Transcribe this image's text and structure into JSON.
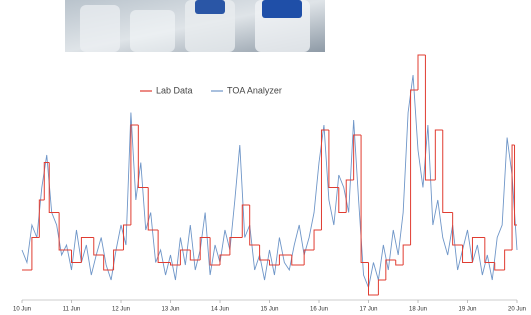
{
  "chart_data": {
    "type": "line",
    "xlim": [
      10,
      20
    ],
    "ylim": [
      0,
      100
    ],
    "xticks": [
      {
        "value": 10,
        "label": "10 Jun"
      },
      {
        "value": 11,
        "label": "11 Jun"
      },
      {
        "value": 12,
        "label": "12 Jun"
      },
      {
        "value": 13,
        "label": "13 Jun"
      },
      {
        "value": 14,
        "label": "14 Jun"
      },
      {
        "value": 15,
        "label": "15 Jun"
      },
      {
        "value": 16,
        "label": "16 Jun"
      },
      {
        "value": 17,
        "label": "17 Jun"
      },
      {
        "value": 18,
        "label": "18 Jun"
      },
      {
        "value": 19,
        "label": "19 Jun"
      },
      {
        "value": 20,
        "label": "20 Jun"
      }
    ],
    "series": [
      {
        "name": "Lab Data",
        "color": "#e03c31",
        "step": true,
        "x": [
          10.0,
          10.2,
          10.35,
          10.45,
          10.55,
          10.75,
          11.0,
          11.2,
          11.45,
          11.65,
          11.85,
          12.05,
          12.2,
          12.35,
          12.55,
          12.75,
          13.0,
          13.2,
          13.4,
          13.6,
          13.8,
          14.0,
          14.2,
          14.45,
          14.6,
          14.8,
          15.0,
          15.2,
          15.45,
          15.7,
          15.9,
          16.05,
          16.2,
          16.4,
          16.55,
          16.7,
          16.85,
          17.0,
          17.2,
          17.35,
          17.55,
          17.7,
          17.85,
          18.0,
          18.15,
          18.35,
          18.5,
          18.7,
          18.9,
          19.1,
          19.35,
          19.55,
          19.75,
          19.9,
          19.95
        ],
        "values": [
          12,
          25,
          40,
          55,
          35,
          20,
          15,
          25,
          18,
          12,
          20,
          30,
          70,
          45,
          28,
          15,
          14,
          20,
          16,
          25,
          14,
          18,
          25,
          38,
          22,
          16,
          14,
          18,
          14,
          20,
          28,
          68,
          45,
          35,
          48,
          66,
          15,
          2,
          8,
          16,
          14,
          22,
          84,
          98,
          48,
          68,
          35,
          22,
          15,
          25,
          15,
          12,
          20,
          62,
          30
        ]
      },
      {
        "name": "TOA Analyzer",
        "color": "#6f96c8",
        "x": [
          10.0,
          10.1,
          10.2,
          10.3,
          10.4,
          10.5,
          10.6,
          10.7,
          10.8,
          10.9,
          11.0,
          11.1,
          11.2,
          11.3,
          11.4,
          11.5,
          11.6,
          11.7,
          11.8,
          11.9,
          12.0,
          12.1,
          12.2,
          12.3,
          12.4,
          12.5,
          12.6,
          12.7,
          12.8,
          12.9,
          13.0,
          13.1,
          13.2,
          13.3,
          13.4,
          13.5,
          13.6,
          13.7,
          13.8,
          13.9,
          14.0,
          14.1,
          14.2,
          14.3,
          14.4,
          14.5,
          14.6,
          14.7,
          14.8,
          14.9,
          15.0,
          15.1,
          15.2,
          15.3,
          15.4,
          15.5,
          15.6,
          15.7,
          15.8,
          15.9,
          16.0,
          16.1,
          16.2,
          16.3,
          16.4,
          16.5,
          16.6,
          16.7,
          16.8,
          16.9,
          17.0,
          17.1,
          17.2,
          17.3,
          17.4,
          17.5,
          17.6,
          17.7,
          17.8,
          17.9,
          18.0,
          18.1,
          18.2,
          18.3,
          18.4,
          18.5,
          18.6,
          18.7,
          18.8,
          18.9,
          19.0,
          19.1,
          19.2,
          19.3,
          19.4,
          19.5,
          19.6,
          19.7,
          19.8,
          19.9,
          20.0
        ],
        "values": [
          20,
          15,
          30,
          25,
          45,
          58,
          35,
          30,
          18,
          22,
          12,
          28,
          15,
          22,
          10,
          18,
          25,
          14,
          8,
          20,
          30,
          22,
          75,
          40,
          55,
          28,
          35,
          15,
          20,
          10,
          18,
          8,
          25,
          14,
          30,
          12,
          20,
          35,
          10,
          22,
          15,
          28,
          20,
          40,
          62,
          25,
          30,
          12,
          18,
          8,
          20,
          10,
          25,
          15,
          12,
          22,
          30,
          18,
          25,
          35,
          55,
          70,
          40,
          30,
          50,
          45,
          35,
          72,
          40,
          10,
          5,
          15,
          8,
          22,
          12,
          28,
          18,
          35,
          75,
          90,
          60,
          45,
          70,
          30,
          40,
          25,
          18,
          30,
          12,
          20,
          28,
          15,
          22,
          10,
          18,
          8,
          25,
          30,
          65,
          50,
          20
        ]
      }
    ]
  }
}
